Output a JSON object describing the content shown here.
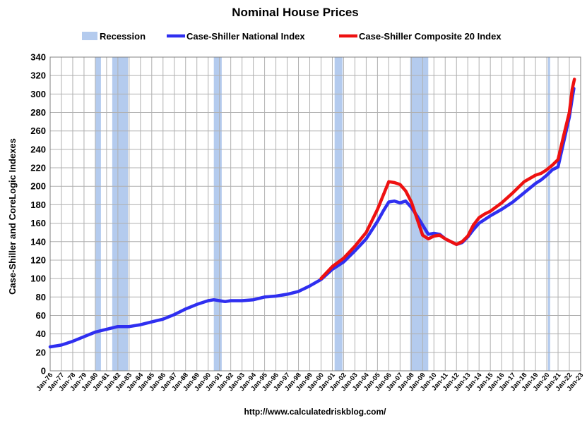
{
  "chart_data": {
    "type": "line",
    "title": "Nominal House Prices",
    "ylabel": "Case-Shiller and CoreLogic Indexes",
    "source": "http://www.calculatedriskblog.com/",
    "ylim": [
      0,
      340
    ],
    "y_ticks": [
      0,
      20,
      40,
      60,
      80,
      100,
      120,
      140,
      160,
      180,
      200,
      220,
      240,
      260,
      280,
      300,
      320,
      340
    ],
    "xlim": [
      1976,
      2023
    ],
    "x_ticks": [
      "Jan-76",
      "Jan-77",
      "Jan-78",
      "Jan-79",
      "Jan-80",
      "Jan-81",
      "Jan-82",
      "Jan-83",
      "Jan-84",
      "Jan-85",
      "Jan-86",
      "Jan-87",
      "Jan-88",
      "Jan-89",
      "Jan-90",
      "Jan-91",
      "Jan-92",
      "Jan-93",
      "Jan-94",
      "Jan-95",
      "Jan-96",
      "Jan-97",
      "Jan-98",
      "Jan-99",
      "Jan-00",
      "Jan-01",
      "Jan-02",
      "Jan-03",
      "Jan-04",
      "Jan-05",
      "Jan-06",
      "Jan-07",
      "Jan-08",
      "Jan-09",
      "Jan-10",
      "Jan-11",
      "Jan-12",
      "Jan-13",
      "Jan-14",
      "Jan-15",
      "Jan-16",
      "Jan-17",
      "Jan-18",
      "Jan-19",
      "Jan-20",
      "Jan-21",
      "Jan-22",
      "Jan-23"
    ],
    "grid": true,
    "legend_position": "top",
    "legend": [
      {
        "label": "Recession",
        "color": "#b4cbee",
        "kind": "box"
      },
      {
        "label": "Case-Shiller National Index",
        "color": "#2f2ff0",
        "kind": "line"
      },
      {
        "label": "Case-Shiller Composite 20 Index",
        "color": "#ee1111",
        "kind": "line"
      }
    ],
    "recessions": [
      {
        "start": 1980.0,
        "end": 1980.5
      },
      {
        "start": 1981.5,
        "end": 1982.9
      },
      {
        "start": 1990.5,
        "end": 1991.2
      },
      {
        "start": 2001.2,
        "end": 2001.9
      },
      {
        "start": 2007.9,
        "end": 2009.5
      },
      {
        "start": 2020.1,
        "end": 2020.3
      }
    ],
    "series": [
      {
        "name": "Case-Shiller National Index",
        "color": "#2f2ff0",
        "x": [
          1976,
          1977,
          1978,
          1979,
          1980,
          1981,
          1982,
          1983,
          1984,
          1985,
          1986,
          1987,
          1988,
          1989,
          1990,
          1990.5,
          1991,
          1991.5,
          1992,
          1993,
          1994,
          1995,
          1996,
          1997,
          1998,
          1999,
          2000,
          2001,
          2002,
          2003,
          2004,
          2005,
          2005.5,
          2006,
          2006.5,
          2007,
          2007.5,
          2008,
          2008.5,
          2009,
          2009.5,
          2010,
          2010.5,
          2011,
          2011.5,
          2012,
          2012.5,
          2013,
          2013.5,
          2014,
          2014.5,
          2015,
          2016,
          2017,
          2018,
          2019,
          2019.5,
          2020,
          2020.5,
          2021,
          2021.5,
          2022,
          2022.25,
          2022.4
        ],
        "values": [
          26,
          28,
          32,
          37,
          42,
          45,
          48,
          48,
          50,
          53,
          56,
          61,
          67,
          72,
          76,
          77,
          76,
          75,
          76,
          76,
          77,
          80,
          81,
          83,
          86,
          92,
          99,
          110,
          118,
          130,
          143,
          162,
          173,
          183,
          184,
          182,
          184,
          177,
          168,
          158,
          148,
          149,
          148,
          143,
          140,
          137,
          139,
          145,
          153,
          160,
          164,
          168,
          175,
          183,
          193,
          203,
          207,
          212,
          218,
          221,
          248,
          275,
          295,
          306
        ]
      },
      {
        "name": "Case-Shiller Composite 20 Index",
        "color": "#ee1111",
        "x": [
          2000,
          2001,
          2002,
          2003,
          2004,
          2005,
          2005.5,
          2006,
          2006.5,
          2007,
          2007.5,
          2008,
          2008.5,
          2009,
          2009.5,
          2010,
          2010.5,
          2011,
          2011.5,
          2012,
          2012.5,
          2013,
          2013.5,
          2014,
          2014.5,
          2015,
          2016,
          2017,
          2018,
          2019,
          2019.5,
          2020,
          2020.5,
          2021,
          2021.5,
          2022,
          2022.25,
          2022.45
        ],
        "values": [
          100,
          113,
          122,
          135,
          150,
          175,
          190,
          205,
          204,
          202,
          195,
          183,
          165,
          147,
          143,
          146,
          147,
          143,
          140,
          137,
          140,
          146,
          158,
          166,
          170,
          173,
          182,
          193,
          205,
          212,
          214,
          218,
          223,
          229,
          255,
          280,
          305,
          316
        ]
      }
    ]
  }
}
